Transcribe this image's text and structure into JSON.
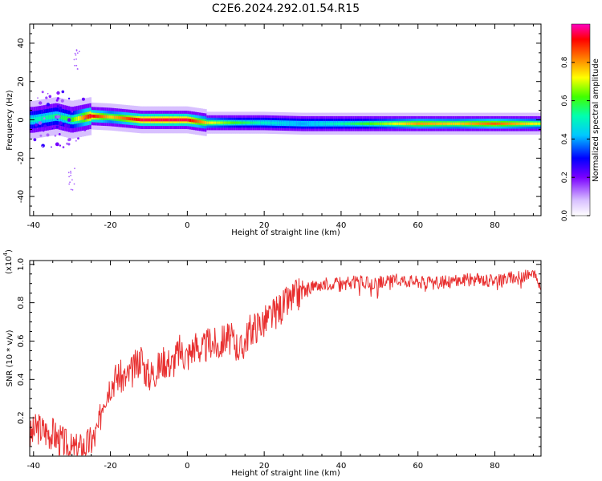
{
  "title": "C2E6.2024.292.01.54.R15",
  "chart_data": [
    {
      "type": "heatmap",
      "xlabel": "Height of straight line (km)",
      "ylabel": "Frequency (Hz)",
      "xlim": [
        -41,
        92
      ],
      "ylim": [
        -50,
        50
      ],
      "xticks": [
        -40,
        -20,
        0,
        20,
        40,
        60,
        80
      ],
      "yticks": [
        -40,
        -20,
        0,
        20,
        40
      ],
      "colorbar": {
        "label": "Normalized spectral amplitude",
        "range": [
          0,
          1
        ],
        "ticks": [
          "0.0",
          "0.2",
          "0.4",
          "0.6",
          "0.8"
        ]
      },
      "ridge": [
        {
          "x": -40,
          "freq": 0,
          "amp": 0.5
        },
        {
          "x": -34,
          "freq": 2,
          "amp": 0.55
        },
        {
          "x": -30,
          "freq": 0,
          "amp": 0.6
        },
        {
          "x": -25,
          "freq": 2,
          "amp": 0.95
        },
        {
          "x": -20,
          "freq": 1.5,
          "amp": 0.75
        },
        {
          "x": -12,
          "freq": 0,
          "amp": 0.95
        },
        {
          "x": -5,
          "freq": 0,
          "amp": 0.95
        },
        {
          "x": 0,
          "freq": 0,
          "amp": 0.95
        },
        {
          "x": 5,
          "freq": -1.5,
          "amp": 0.75
        },
        {
          "x": 10,
          "freq": -1.5,
          "amp": 0.65
        },
        {
          "x": 20,
          "freq": -1.5,
          "amp": 0.5
        },
        {
          "x": 30,
          "freq": -2,
          "amp": 0.4
        },
        {
          "x": 50,
          "freq": -2,
          "amp": 0.65
        },
        {
          "x": 60,
          "freq": -2,
          "amp": 0.8
        },
        {
          "x": 70,
          "freq": -2,
          "amp": 0.75
        },
        {
          "x": 80,
          "freq": -2,
          "amp": 0.85
        },
        {
          "x": 92,
          "freq": -2,
          "amp": 0.7
        }
      ]
    },
    {
      "type": "line",
      "xlabel": "Height of straight line (km)",
      "ylabel": "SNR (10 * v/v)",
      "y_multiplier": "(x10",
      "y_multiplier_exp": "4",
      "y_multiplier_close": ")",
      "xlim": [
        -41,
        92
      ],
      "ylim": [
        0,
        1.02
      ],
      "xticks": [
        -40,
        -20,
        0,
        20,
        40,
        60,
        80
      ],
      "yticks": [
        "0.2",
        "0.4",
        "0.6",
        "0.8",
        "1.0"
      ],
      "color": "#e83030",
      "series": [
        {
          "x": [
            -41,
            -39,
            -37,
            -35,
            -33,
            -31,
            -30,
            -28,
            -26,
            -24,
            -23,
            -22,
            -20,
            -18,
            -16,
            -14,
            -12,
            -11,
            -10,
            -8,
            -6,
            -4,
            -2,
            0,
            2,
            4,
            6,
            8,
            10,
            12,
            14,
            16,
            18,
            20,
            22,
            24,
            26,
            28,
            30,
            32,
            34,
            36,
            38,
            40,
            44,
            48,
            52,
            56,
            60,
            64,
            68,
            72,
            76,
            80,
            84,
            88,
            90,
            92
          ],
          "values": [
            0.1,
            0.15,
            0.13,
            0.12,
            0.08,
            0.05,
            0.03,
            0.04,
            0.06,
            0.1,
            0.15,
            0.3,
            0.38,
            0.42,
            0.4,
            0.45,
            0.52,
            0.45,
            0.42,
            0.45,
            0.5,
            0.48,
            0.55,
            0.52,
            0.58,
            0.55,
            0.6,
            0.57,
            0.62,
            0.6,
            0.55,
            0.65,
            0.68,
            0.7,
            0.73,
            0.77,
            0.8,
            0.83,
            0.86,
            0.88,
            0.89,
            0.9,
            0.9,
            0.9,
            0.91,
            0.9,
            0.91,
            0.92,
            0.91,
            0.9,
            0.91,
            0.92,
            0.92,
            0.92,
            0.93,
            0.94,
            0.95,
            0.88
          ]
        }
      ]
    }
  ]
}
